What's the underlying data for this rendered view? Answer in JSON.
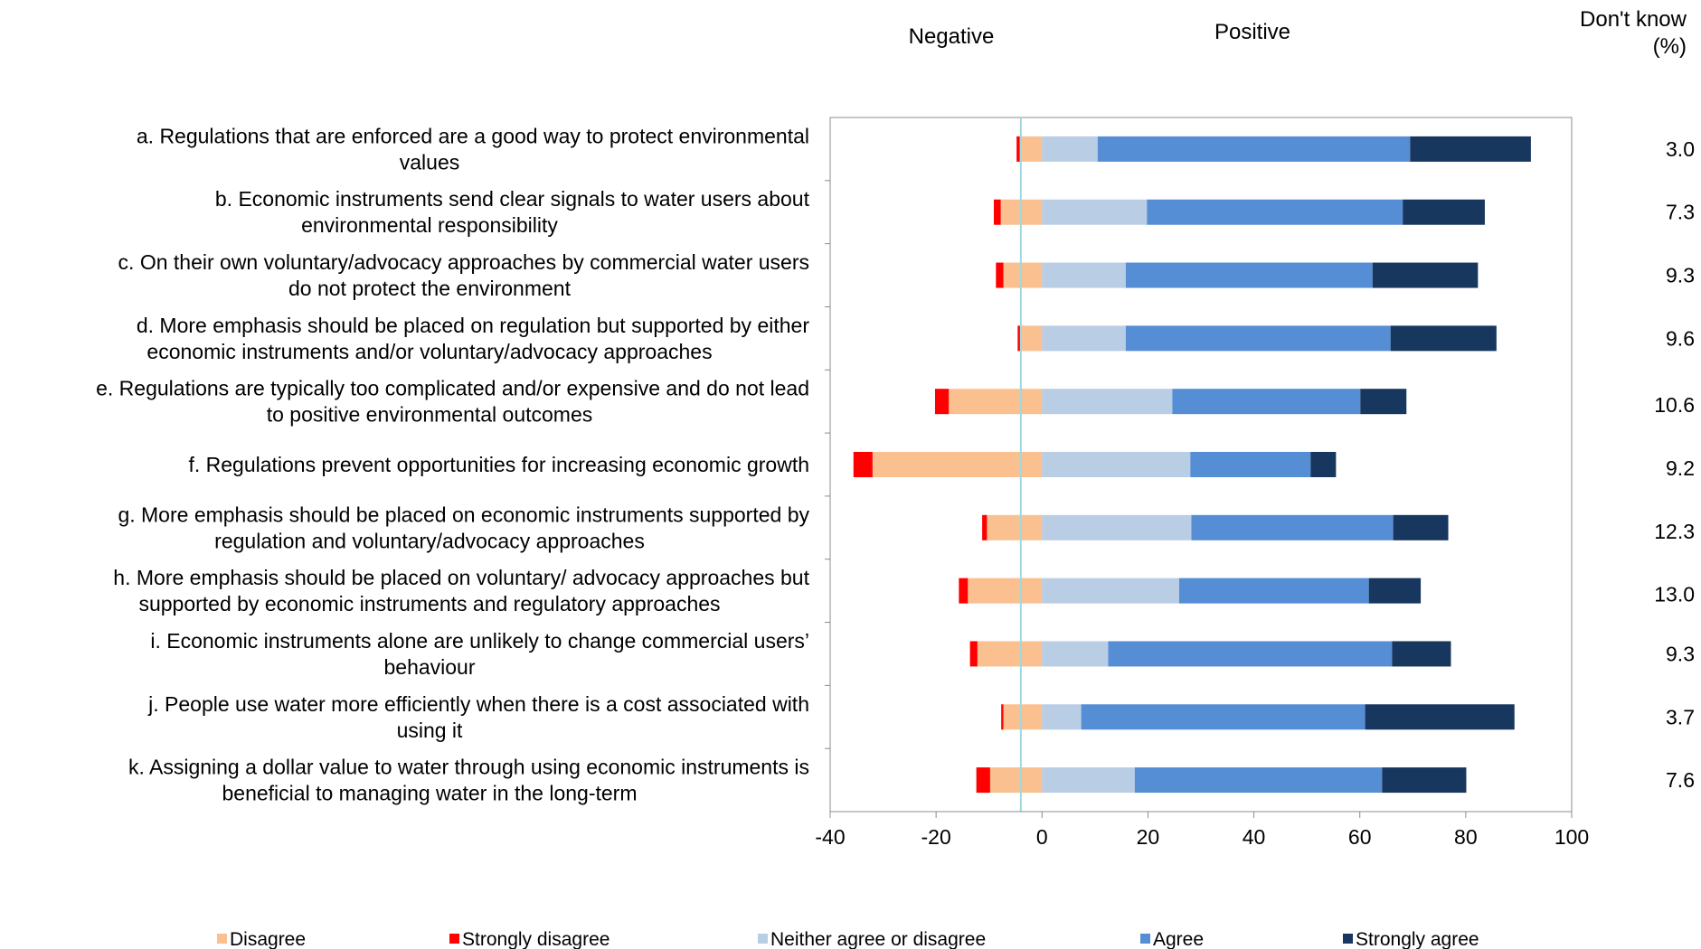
{
  "chart_data": {
    "type": "bar",
    "stacked": true,
    "orientation": "horizontal",
    "header_negative": "Negative",
    "header_positive": "Positive",
    "header_dontknow_line1": "Don't know",
    "header_dontknow_line2": "(%)",
    "xlim": [
      -40,
      100
    ],
    "x_ticks": [
      "-40",
      "-20",
      "0",
      "20",
      "40",
      "60",
      "80",
      "100"
    ],
    "reference_line_x": -4,
    "categories": [
      [
        "a. Regulations that are enforced are a good way to protect environmental",
        "values"
      ],
      [
        "b. Economic instruments send clear signals to water users about",
        "environmental responsibility"
      ],
      [
        "c. On their own voluntary/advocacy approaches by commercial water users",
        "do not protect the environment"
      ],
      [
        "d. More emphasis should be placed on regulation but supported by either",
        "economic instruments and/or voluntary/advocacy approaches"
      ],
      [
        "e. Regulations are typically too complicated and/or expensive and do not lead",
        "to positive environmental outcomes"
      ],
      [
        "f. Regulations prevent opportunities for increasing economic growth"
      ],
      [
        "g. More emphasis should be placed on economic instruments supported by",
        "regulation and voluntary/advocacy approaches"
      ],
      [
        "h. More emphasis should be placed on voluntary/ advocacy approaches but",
        "supported by economic instruments and regulatory approaches"
      ],
      [
        "i. Economic instruments alone are unlikely to change commercial users’",
        "behaviour"
      ],
      [
        "j. People use water more efficiently when there is a cost associated with",
        "using it"
      ],
      [
        "k. Assigning a dollar value to water through using economic instruments is",
        "beneficial to managing water in the long-term"
      ]
    ],
    "dont_know": [
      "3.0",
      "7.3",
      "9.3",
      "9.6",
      "10.6",
      "9.2",
      "12.3",
      "13.0",
      "9.3",
      "3.7",
      "7.6"
    ],
    "negative_series": [
      {
        "name": "Disagree",
        "color": "#FAC090",
        "values": [
          4.2,
          7.8,
          7.3,
          4.0,
          17.6,
          32.0,
          10.4,
          14.0,
          12.2,
          7.3,
          9.8
        ]
      },
      {
        "name": "Strongly disagree",
        "color": "#FF0000",
        "values": [
          0.6,
          1.3,
          1.4,
          0.6,
          2.6,
          3.6,
          0.9,
          1.7,
          1.4,
          0.4,
          2.6
        ]
      }
    ],
    "positive_series": [
      {
        "name": "Neither agree or disagree",
        "color": "#B9CDE5",
        "values": [
          10.5,
          19.8,
          15.8,
          15.8,
          24.6,
          28.0,
          28.2,
          25.9,
          12.5,
          7.4,
          17.5
        ]
      },
      {
        "name": "Agree",
        "color": "#558ED5",
        "values": [
          59.0,
          48.3,
          46.6,
          50.0,
          35.5,
          22.7,
          38.1,
          35.8,
          53.6,
          53.6,
          46.7
        ]
      },
      {
        "name": "Strongly agree",
        "color": "#17375E",
        "values": [
          22.8,
          15.5,
          19.9,
          20.0,
          8.7,
          4.8,
          10.4,
          9.8,
          11.1,
          28.2,
          15.9
        ]
      }
    ],
    "legend": [
      {
        "name": "Disagree",
        "color": "#FAC090"
      },
      {
        "name": "Strongly disagree",
        "color": "#FF0000"
      },
      {
        "name": "Neither agree or disagree",
        "color": "#B9CDE5"
      },
      {
        "name": "Agree",
        "color": "#558ED5"
      },
      {
        "name": "Strongly agree",
        "color": "#17375E"
      }
    ],
    "reference_line_color": "#9DD9E0",
    "legend_position": "bottom"
  }
}
